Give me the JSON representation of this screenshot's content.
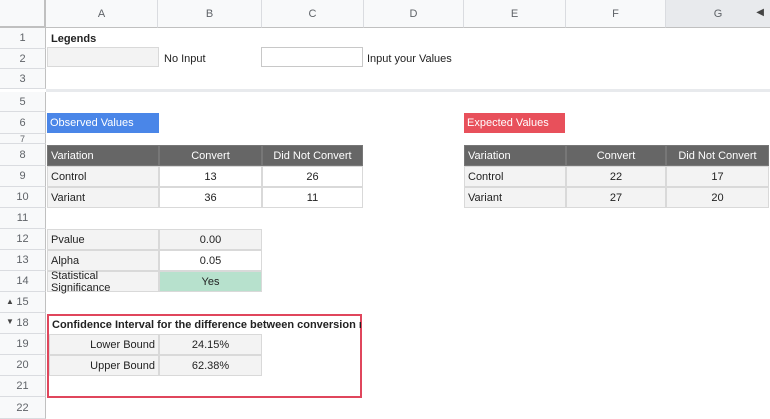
{
  "columns": [
    "A",
    "B",
    "C",
    "D",
    "E",
    "F",
    "G"
  ],
  "rows": [
    "1",
    "2",
    "3",
    "5",
    "6",
    "7",
    "8",
    "9",
    "10",
    "11",
    "12",
    "13",
    "14",
    "15",
    "18",
    "19",
    "20",
    "21",
    "22"
  ],
  "legends": {
    "title": "Legends",
    "no_input_label": "No Input",
    "input_label": "Input your Values"
  },
  "observed": {
    "title": "Observed Values",
    "headers": [
      "Variation",
      "Convert",
      "Did Not Convert"
    ],
    "rows": [
      [
        "Control",
        "13",
        "26"
      ],
      [
        "Variant",
        "36",
        "11"
      ]
    ]
  },
  "expected": {
    "title": "Expected Values",
    "headers": [
      "Variation",
      "Convert",
      "Did Not Convert"
    ],
    "rows": [
      [
        "Control",
        "22",
        "17"
      ],
      [
        "Variant",
        "27",
        "20"
      ]
    ]
  },
  "stats": {
    "pvalue_label": "Pvalue",
    "pvalue": "0.00",
    "alpha_label": "Alpha",
    "alpha": "0.05",
    "sig_label": "Statistical Significance",
    "sig": "Yes"
  },
  "ci": {
    "title": "Confidence Interval for the difference between conversion rates",
    "lower_label": "Lower Bound",
    "lower": "24.15%",
    "upper_label": "Upper Bound",
    "upper": "62.38%"
  },
  "colors": {
    "observed": "#4a86e8",
    "expected": "#e8505b",
    "significant": "#b7e1cd",
    "header": "#666666"
  }
}
